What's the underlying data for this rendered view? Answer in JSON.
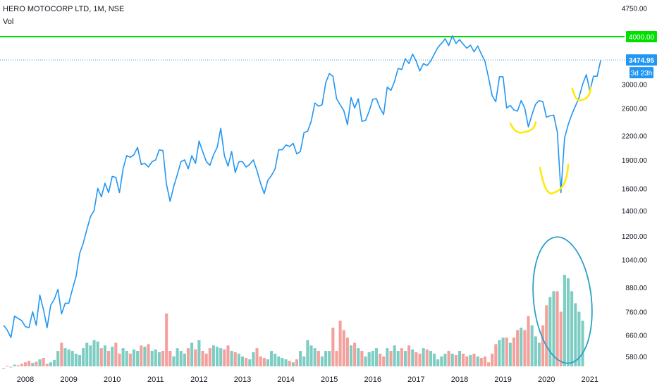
{
  "header": {
    "symbol_line": "HERO MOTOCORP LTD, 1M, NSE",
    "indicator": "Vol"
  },
  "chart_data": {
    "type": "line",
    "title": "HERO MOTOCORP LTD, 1M, NSE",
    "xlabel": "",
    "ylabel": "",
    "x_ticks": [
      "2008",
      "2009",
      "2010",
      "2011",
      "2012",
      "2013",
      "2014",
      "2015",
      "2016",
      "2017",
      "2018",
      "2019",
      "2020",
      "2021"
    ],
    "price_axis_ticks": [
      580,
      660,
      760,
      880,
      1040,
      1200,
      1400,
      1600,
      1900,
      2200,
      2600,
      3000,
      4750
    ],
    "price_scale": "log",
    "ylim": [
      530,
      4800
    ],
    "colors": {
      "price_line": "#2196f3",
      "volume_up": "#7ecdc3",
      "volume_down": "#f4a09c",
      "resistance_line": "#00e000",
      "annotation_yellow": "#ffea00",
      "annotation_ellipse": "#29a0c8",
      "price_badge": "#2196f3",
      "resistance_badge": "#00e000"
    },
    "resistance_level": {
      "value": 4000,
      "label": "4000.00"
    },
    "last_price": {
      "value": 3474.95,
      "label": "3474.95",
      "countdown": "3d 23h"
    },
    "series": [
      {
        "type": "line",
        "start": "2007-07",
        "interval": "1M",
        "values": [
          700,
          680,
          650,
          740,
          730,
          720,
          695,
          690,
          760,
          700,
          840,
          770,
          690,
          790,
          820,
          870,
          750,
          800,
          800,
          870,
          940,
          1080,
          1150,
          1250,
          1350,
          1400,
          1600,
          1520,
          1650,
          1560,
          1720,
          1710,
          1560,
          1800,
          1950,
          1930,
          1960,
          2050,
          1850,
          1860,
          1820,
          1880,
          1900,
          2020,
          2010,
          1640,
          1480,
          1620,
          1740,
          1880,
          1900,
          1800,
          1950,
          1860,
          2130,
          2000,
          1880,
          1840,
          1960,
          2050,
          2300,
          1950,
          1830,
          2000,
          1760,
          1880,
          1880,
          1820,
          1850,
          1900,
          1780,
          1650,
          1550,
          1680,
          1730,
          1800,
          2020,
          2020,
          2080,
          2060,
          2100,
          1970,
          2000,
          2240,
          2260,
          2400,
          2680,
          2630,
          2650,
          3030,
          3200,
          3150,
          2750,
          2650,
          2560,
          2350,
          2770,
          2600,
          2750,
          2400,
          2410,
          2550,
          2740,
          2750,
          2600,
          2500,
          2950,
          2890,
          3050,
          3300,
          3280,
          3500,
          3400,
          3600,
          3450,
          3250,
          3400,
          3360,
          3450,
          3600,
          3750,
          3840,
          3950,
          3790,
          4020,
          3840,
          3930,
          3820,
          3730,
          3800,
          3650,
          3780,
          3600,
          3450,
          3120,
          2800,
          2700,
          3140,
          3140,
          2600,
          2640,
          2570,
          2550,
          2720,
          2600,
          2320,
          2500,
          2660,
          2720,
          2700,
          2460,
          2480,
          2490,
          2250,
          1560,
          2170,
          2350,
          2500,
          2630,
          2770,
          3000,
          3180,
          2880,
          3150,
          3150,
          3470
        ]
      },
      {
        "type": "bar",
        "name": "Vol",
        "start": "2007-07",
        "interval": "1M",
        "values": [
          540,
          548,
          545,
          552,
          550,
          555,
          560,
          565,
          558,
          562,
          570,
          575,
          555,
          560,
          568,
          600,
          630,
          610,
          605,
          600,
          590,
          585,
          610,
          630,
          620,
          640,
          635,
          610,
          620,
          600,
          615,
          630,
          590,
          610,
          600,
          590,
          605,
          600,
          620,
          615,
          625,
          600,
          605,
          595,
          600,
          752,
          600,
          580,
          610,
          600,
          590,
          610,
          630,
          605,
          640,
          600,
          590,
          610,
          620,
          615,
          610,
          605,
          620,
          600,
          595,
          590,
          580,
          575,
          570,
          595,
          610,
          580,
          575,
          570,
          600,
          590,
          580,
          575,
          570,
          565,
          560,
          570,
          600,
          580,
          640,
          620,
          610,
          600,
          580,
          600,
          600,
          690,
          600,
          720,
          680,
          650,
          620,
          630,
          610,
          600,
          580,
          595,
          600,
          610,
          590,
          580,
          610,
          600,
          620,
          600,
          610,
          600,
          620,
          605,
          595,
          590,
          610,
          605,
          600,
          590,
          570,
          580,
          590,
          600,
          590,
          585,
          600,
          590,
          580,
          585,
          590,
          580,
          575,
          580,
          560,
          590,
          625,
          640,
          650,
          650,
          630,
          650,
          680,
          690,
          680,
          740,
          700,
          655,
          630,
          700,
          790,
          830,
          860,
          860,
          760,
          950,
          930,
          860,
          800,
          760,
          720
        ]
      }
    ],
    "annotations": [
      {
        "type": "yellow-arc",
        "near": "2019-06"
      },
      {
        "type": "yellow-arc",
        "near": "2020-04"
      },
      {
        "type": "yellow-arc",
        "near": "2020-12"
      },
      {
        "type": "ellipse",
        "around": "2020 volume spike"
      }
    ]
  }
}
